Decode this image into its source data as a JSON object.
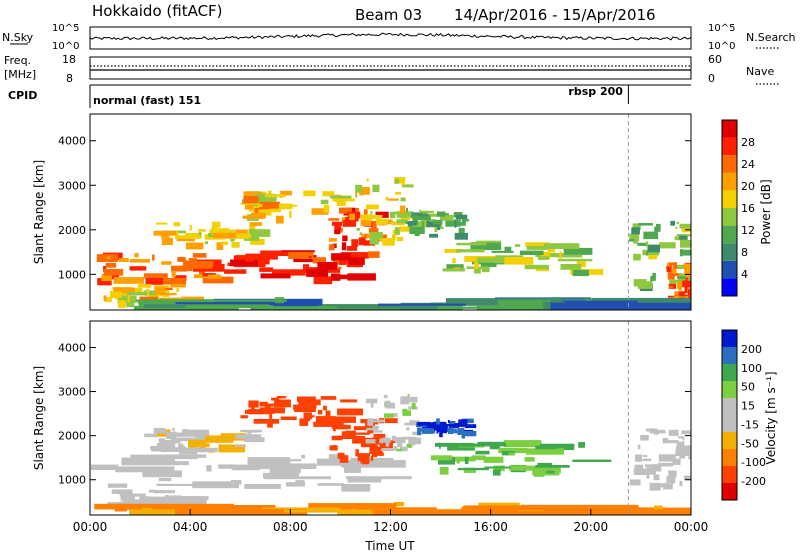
{
  "header": {
    "site": "Hokkaido (fitACF)",
    "beam": "Beam 03",
    "date_range": "14/Apr/2016 - 15/Apr/2016"
  },
  "strips": {
    "nsky_label": "N.Sky",
    "nsky_ticks": [
      "10^5",
      "10^0"
    ],
    "nsearch_label": "N.Search",
    "freq_label_line1": "Freq.",
    "freq_label_line2": "[MHz]",
    "freq_ticks": [
      "18",
      "8"
    ],
    "nave_label": "Nave",
    "nave_ticks": [
      "60",
      "0"
    ],
    "cpid_label": "CPID",
    "cpid_segments": [
      {
        "name": "normal (fast) 151",
        "start_hour": 0,
        "end_hour": 21.5
      },
      {
        "name": "rbsp 200",
        "start_hour": 21.5,
        "end_hour": 24
      }
    ]
  },
  "chart_data": [
    {
      "type": "heatmap",
      "panel": "power",
      "ylabel": "Slant Range [km]",
      "ylim": [
        200,
        4600
      ],
      "yticks": [
        "1000",
        "2000",
        "3000",
        "4000"
      ],
      "xlim": [
        0,
        24
      ],
      "colorbar_label": "Power [dB]",
      "colorbar_ticks": [
        "4",
        "8",
        "12",
        "16",
        "20",
        "24",
        "28"
      ],
      "colors": [
        "#0000ff",
        "#1f4fb0",
        "#3f8a6a",
        "#4fa84f",
        "#8fc840",
        "#f4d000",
        "#ffa000",
        "#ff6a00",
        "#ff2000",
        "#e00000"
      ],
      "regions": [
        {
          "t0": 0.0,
          "t1": 5.0,
          "r0": 900,
          "r1": 1500,
          "v": 24
        },
        {
          "t0": 5.0,
          "t1": 10.5,
          "r0": 950,
          "r1": 1550,
          "v": 28
        },
        {
          "t0": 0.5,
          "t1": 4.0,
          "r0": 400,
          "r1": 800,
          "v": 20
        },
        {
          "t0": 2.5,
          "t1": 6.5,
          "r0": 1700,
          "r1": 2200,
          "v": 18
        },
        {
          "t0": 6.0,
          "t1": 10.0,
          "r0": 2300,
          "r1": 2900,
          "v": 20
        },
        {
          "t0": 9.5,
          "t1": 11.8,
          "r0": 1500,
          "r1": 2500,
          "v": 26
        },
        {
          "t0": 10.5,
          "t1": 12.5,
          "r0": 1800,
          "r1": 3200,
          "v": 18
        },
        {
          "t0": 12.5,
          "t1": 15.0,
          "r0": 1900,
          "r1": 2500,
          "v": 12
        },
        {
          "t0": 14.0,
          "t1": 19.5,
          "r0": 1100,
          "r1": 1800,
          "v": 16
        },
        {
          "t0": 21.5,
          "t1": 24.0,
          "r0": 800,
          "r1": 2200,
          "v": 14
        },
        {
          "t0": 23.0,
          "t1": 24.0,
          "r0": 400,
          "r1": 1300,
          "v": 24
        },
        {
          "t0": 0.0,
          "t1": 24.0,
          "r0": 200,
          "r1": 500,
          "v": 10
        }
      ]
    },
    {
      "type": "heatmap",
      "panel": "velocity",
      "ylabel": "Slant Range [km]",
      "ylim": [
        200,
        4600
      ],
      "yticks": [
        "1000",
        "2000",
        "3000",
        "4000"
      ],
      "xlim": [
        0,
        24
      ],
      "xticks": [
        "00:00",
        "04:00",
        "08:00",
        "12:00",
        "16:00",
        "20:00",
        "00:00"
      ],
      "xlabel": "Time UT",
      "colorbar_label": "Velocity [m s⁻¹]",
      "colorbar_ticks": [
        "200",
        "100",
        "50",
        "15",
        "-15",
        "-50",
        "-100",
        "-200"
      ],
      "colors": [
        "#e00000",
        "#ff4000",
        "#ff8000",
        "#f4b000",
        "#c0c0c0",
        "#c0c0c0",
        "#7ccf40",
        "#3fa84f",
        "#2a6fc0",
        "#0018d0"
      ],
      "regions": [
        {
          "t0": 0.0,
          "t1": 10.5,
          "r0": 900,
          "r1": 1600,
          "v": -5
        },
        {
          "t0": 0.5,
          "t1": 4.5,
          "r0": 450,
          "r1": 800,
          "v": -5
        },
        {
          "t0": 2.0,
          "t1": 6.5,
          "r0": 1700,
          "r1": 2200,
          "v": -10
        },
        {
          "t0": 6.0,
          "t1": 10.0,
          "r0": 2300,
          "r1": 2900,
          "v": -60
        },
        {
          "t0": 9.5,
          "t1": 12.0,
          "r0": 1500,
          "r1": 2400,
          "v": -70
        },
        {
          "t0": 11.0,
          "t1": 13.0,
          "r0": 1700,
          "r1": 3000,
          "v": 10
        },
        {
          "t0": 13.0,
          "t1": 15.0,
          "r0": 2100,
          "r1": 2400,
          "v": 200
        },
        {
          "t0": 13.5,
          "t1": 19.5,
          "r0": 1200,
          "r1": 1900,
          "v": 50
        },
        {
          "t0": 21.5,
          "t1": 24.0,
          "r0": 800,
          "r1": 2200,
          "v": -5
        },
        {
          "t0": 0.0,
          "t1": 24.0,
          "r0": 200,
          "r1": 500,
          "v": -30
        }
      ]
    }
  ]
}
